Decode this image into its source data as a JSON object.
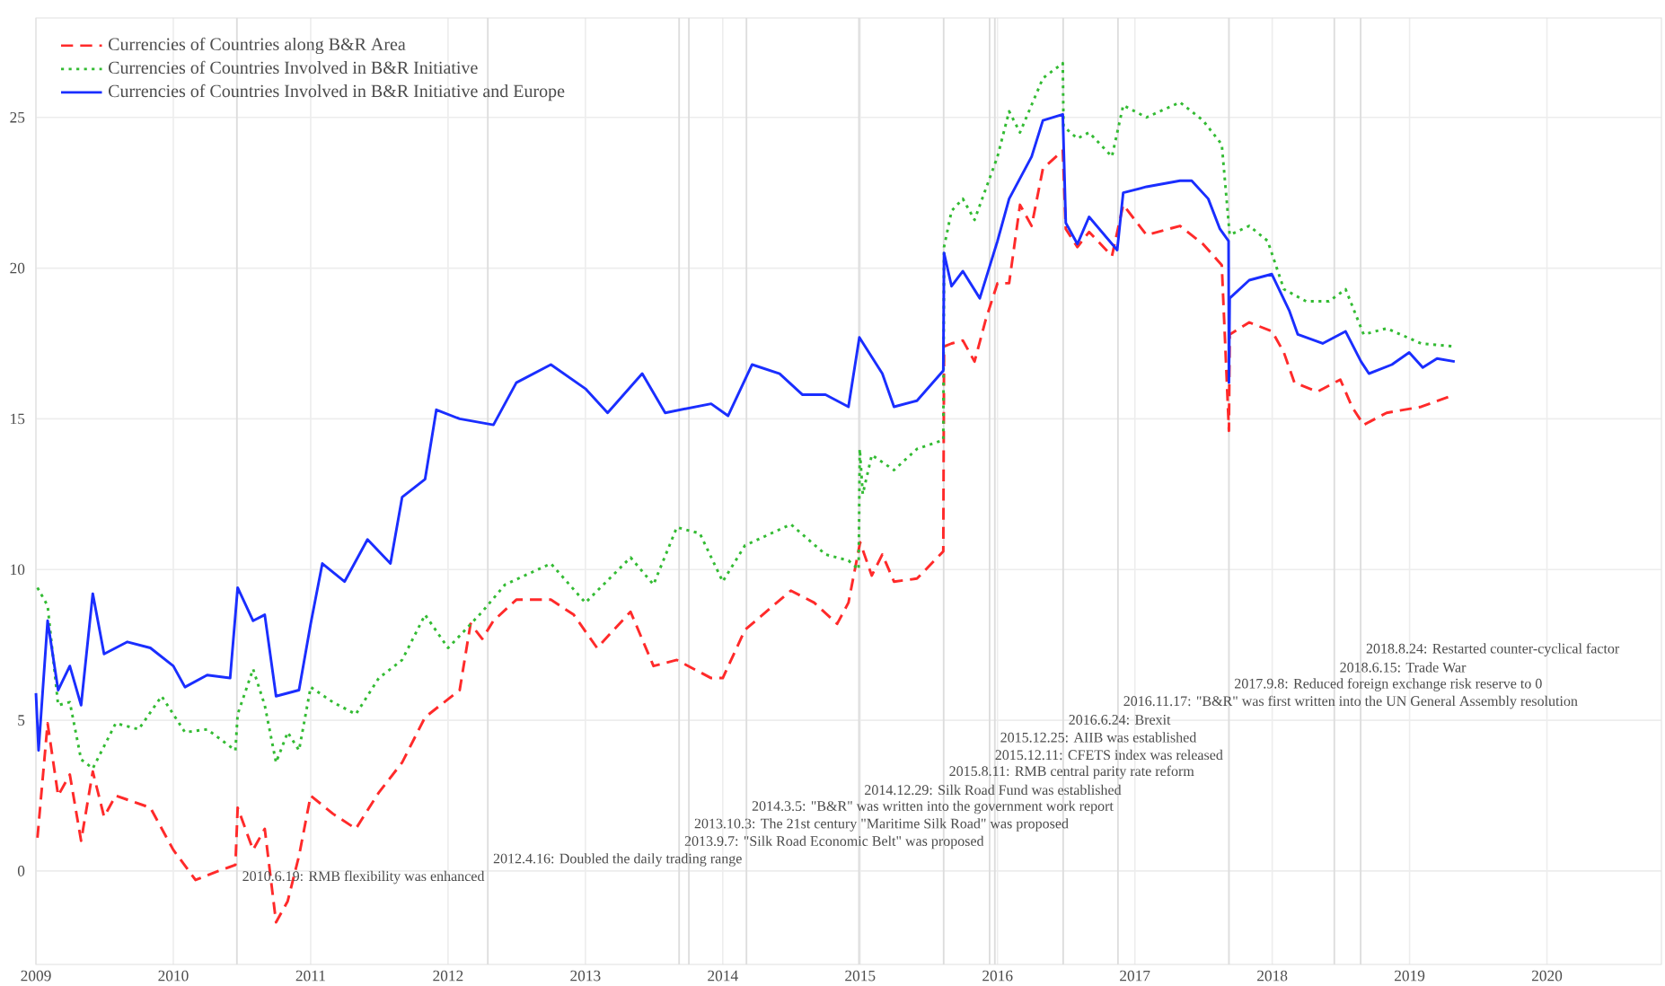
{
  "chart_data": {
    "type": "line",
    "xlim": [
      "2009-01-01",
      "2020-11-01"
    ],
    "xticks": [
      "2009",
      "2010",
      "2011",
      "2012",
      "2013",
      "2014",
      "2015",
      "2016",
      "2017",
      "2018",
      "2019",
      "2020"
    ],
    "ylim": [
      -3.1,
      28.3
    ],
    "yticks": [
      0,
      5,
      10,
      15,
      20,
      25
    ],
    "grid": true,
    "legend": "top left",
    "series": [
      {
        "name": "Currencies of Countries along B&R Area",
        "color": "#ff2a2a",
        "line_style": "dashed",
        "x": [
          "2009-01-05",
          "2009-02-01",
          "2009-03-01",
          "2009-04-01",
          "2009-05-01",
          "2009-06-01",
          "2009-07-01",
          "2009-08-01",
          "2009-11-01",
          "2010-01-01",
          "2010-03-01",
          "2010-05-01",
          "2010-06-15",
          "2010-06-21",
          "2010-08-01",
          "2010-09-01",
          "2010-10-01",
          "2010-11-01",
          "2010-12-01",
          "2011-01-01",
          "2011-03-01",
          "2011-05-01",
          "2011-07-01",
          "2011-09-01",
          "2011-11-01",
          "2012-01-01",
          "2012-02-01",
          "2012-03-01",
          "2012-04-01",
          "2012-05-01",
          "2012-07-01",
          "2012-10-01",
          "2012-12-01",
          "2013-02-01",
          "2013-05-01",
          "2013-07-01",
          "2013-09-01",
          "2013-12-01",
          "2014-01-01",
          "2014-03-01",
          "2014-07-01",
          "2014-09-01",
          "2014-11-01",
          "2014-12-01",
          "2015-01-01",
          "2015-02-01",
          "2015-03-01",
          "2015-04-01",
          "2015-06-01",
          "2015-08-10",
          "2015-08-12",
          "2015-09-01",
          "2015-10-01",
          "2015-11-01",
          "2015-12-01",
          "2016-01-01",
          "2016-02-01",
          "2016-03-01",
          "2016-04-01",
          "2016-05-01",
          "2016-06-23",
          "2016-07-01",
          "2016-08-01",
          "2016-09-01",
          "2016-11-01",
          "2016-12-01",
          "2017-02-01",
          "2017-05-01",
          "2017-07-01",
          "2017-08-20",
          "2017-09-08",
          "2017-09-10",
          "2017-11-01",
          "2018-01-01",
          "2018-02-01",
          "2018-03-01",
          "2018-05-01",
          "2018-07-01",
          "2018-08-01",
          "2018-09-01",
          "2018-11-01",
          "2019-02-01",
          "2019-05-01"
        ],
        "values": [
          1.1,
          4.9,
          2.5,
          3.2,
          1.0,
          3.3,
          1.8,
          2.5,
          2.1,
          0.7,
          -0.3,
          0.0,
          0.2,
          2.1,
          0.7,
          1.4,
          -1.7,
          -1.0,
          0.5,
          2.5,
          1.9,
          1.4,
          2.6,
          3.6,
          5.1,
          5.7,
          6.0,
          8.2,
          7.7,
          8.3,
          9.0,
          9.0,
          8.5,
          7.4,
          8.6,
          6.8,
          7.0,
          6.4,
          6.4,
          8.0,
          9.3,
          8.9,
          8.2,
          8.9,
          10.9,
          9.8,
          10.5,
          9.6,
          9.7,
          10.6,
          17.4,
          17.5,
          17.6,
          16.9,
          18.3,
          19.5,
          19.5,
          22.1,
          21.4,
          23.3,
          23.9,
          21.3,
          20.7,
          21.2,
          20.4,
          22.1,
          21.1,
          21.4,
          20.8,
          20.1,
          14.6,
          17.8,
          18.2,
          17.9,
          17.2,
          16.2,
          15.9,
          16.3,
          15.4,
          14.8,
          15.2,
          15.4,
          15.8
        ]
      },
      {
        "name": "Currencies of Countries Involved in B&R Initiative",
        "color": "#33bb33",
        "line_style": "dotted",
        "x": [
          "2009-01-05",
          "2009-02-01",
          "2009-03-01",
          "2009-04-01",
          "2009-05-01",
          "2009-06-01",
          "2009-08-01",
          "2009-10-01",
          "2009-12-01",
          "2010-02-01",
          "2010-04-01",
          "2010-06-15",
          "2010-06-21",
          "2010-08-01",
          "2010-09-01",
          "2010-10-01",
          "2010-11-01",
          "2010-12-01",
          "2011-01-01",
          "2011-03-01",
          "2011-05-01",
          "2011-07-01",
          "2011-09-01",
          "2011-11-01",
          "2012-01-01",
          "2012-02-01",
          "2012-04-01",
          "2012-06-01",
          "2012-10-01",
          "2013-01-01",
          "2013-05-01",
          "2013-07-01",
          "2013-09-01",
          "2013-11-01",
          "2014-01-01",
          "2014-03-01",
          "2014-07-01",
          "2014-10-01",
          "2014-12-01",
          "2014-12-28",
          "2014-12-31",
          "2015-01-08",
          "2015-02-01",
          "2015-04-01",
          "2015-06-01",
          "2015-08-10",
          "2015-08-12",
          "2015-09-01",
          "2015-10-01",
          "2015-11-01",
          "2016-01-01",
          "2016-02-01",
          "2016-03-01",
          "2016-05-01",
          "2016-06-23",
          "2016-06-25",
          "2016-08-01",
          "2016-09-01",
          "2016-11-01",
          "2016-12-01",
          "2017-02-01",
          "2017-05-01",
          "2017-07-01",
          "2017-08-20",
          "2017-09-10",
          "2017-11-01",
          "2017-12-20",
          "2018-02-01",
          "2018-04-01",
          "2018-06-01",
          "2018-07-15",
          "2018-09-01",
          "2018-11-01",
          "2019-02-01",
          "2019-05-01"
        ],
        "values": [
          9.4,
          8.8,
          5.5,
          5.6,
          3.7,
          3.4,
          4.9,
          4.7,
          5.8,
          4.6,
          4.7,
          4.0,
          5.2,
          6.7,
          5.5,
          3.6,
          4.6,
          4.0,
          6.1,
          5.6,
          5.2,
          6.4,
          7.0,
          8.5,
          7.4,
          7.8,
          8.6,
          9.5,
          10.2,
          8.9,
          10.4,
          9.5,
          11.4,
          11.2,
          9.6,
          10.8,
          11.5,
          10.5,
          10.3,
          10.0,
          14.0,
          12.5,
          13.8,
          13.3,
          14.0,
          14.3,
          20.7,
          21.9,
          22.3,
          21.6,
          23.7,
          25.2,
          24.5,
          26.3,
          26.8,
          24.7,
          24.3,
          24.5,
          23.7,
          25.4,
          25.0,
          25.5,
          24.9,
          24.1,
          21.1,
          21.4,
          20.9,
          19.3,
          18.9,
          18.9,
          19.3,
          17.8,
          18.0,
          17.5,
          17.4
        ]
      },
      {
        "name": "Currencies of Countries Involved in B&R Initiative and Europe",
        "color": "#1a2eff",
        "line_style": "solid",
        "x": [
          "2009-01-01",
          "2009-01-08",
          "2009-02-01",
          "2009-03-01",
          "2009-04-01",
          "2009-05-01",
          "2009-06-01",
          "2009-07-01",
          "2009-09-01",
          "2009-11-01",
          "2010-01-01",
          "2010-02-01",
          "2010-04-01",
          "2010-06-01",
          "2010-06-21",
          "2010-08-01",
          "2010-09-01",
          "2010-10-01",
          "2010-12-01",
          "2011-01-01",
          "2011-02-01",
          "2011-04-01",
          "2011-06-01",
          "2011-08-01",
          "2011-09-01",
          "2011-11-01",
          "2011-12-01",
          "2012-02-01",
          "2012-05-01",
          "2012-07-01",
          "2012-10-01",
          "2013-01-01",
          "2013-03-01",
          "2013-06-01",
          "2013-08-01",
          "2013-12-01",
          "2014-01-15",
          "2014-03-20",
          "2014-06-01",
          "2014-08-01",
          "2014-10-01",
          "2014-12-01",
          "2014-12-30",
          "2015-03-01",
          "2015-04-01",
          "2015-06-01",
          "2015-08-10",
          "2015-08-12",
          "2015-09-01",
          "2015-10-01",
          "2015-11-15",
          "2016-01-01",
          "2016-02-01",
          "2016-04-01",
          "2016-05-01",
          "2016-06-23",
          "2016-07-01",
          "2016-08-01",
          "2016-09-01",
          "2016-11-15",
          "2016-12-01",
          "2017-02-01",
          "2017-05-01",
          "2017-06-01",
          "2017-07-15",
          "2017-08-15",
          "2017-09-07",
          "2017-09-08",
          "2017-09-10",
          "2017-11-01",
          "2017-12-31",
          "2018-02-15",
          "2018-03-10",
          "2018-05-15",
          "2018-07-15",
          "2018-08-25",
          "2018-09-15",
          "2018-11-15",
          "2018-12-31",
          "2019-02-05",
          "2019-03-15",
          "2019-05-01"
        ],
        "values": [
          5.9,
          4.0,
          8.3,
          6.0,
          6.8,
          5.5,
          9.2,
          7.2,
          7.6,
          7.4,
          6.8,
          6.1,
          6.5,
          6.4,
          9.4,
          8.3,
          8.5,
          5.8,
          6.0,
          8.2,
          10.2,
          9.6,
          11.0,
          10.2,
          12.4,
          13.0,
          15.3,
          15.0,
          14.8,
          16.2,
          16.8,
          16.0,
          15.2,
          16.5,
          15.2,
          15.5,
          15.1,
          16.8,
          16.5,
          15.8,
          15.8,
          15.4,
          17.7,
          16.5,
          15.4,
          15.6,
          16.6,
          20.5,
          19.4,
          19.9,
          19.0,
          20.9,
          22.3,
          23.7,
          24.9,
          25.1,
          21.5,
          20.8,
          21.7,
          20.6,
          22.5,
          22.7,
          22.9,
          22.9,
          22.3,
          21.3,
          20.9,
          16.2,
          19.0,
          19.6,
          19.8,
          18.6,
          17.8,
          17.5,
          17.9,
          16.9,
          16.5,
          16.8,
          17.2,
          16.7,
          17.0,
          16.9
        ]
      }
    ],
    "ref_lines": [
      {
        "axis": "x",
        "value": "2010-06-19",
        "label": "2010.6.19: RMB flexibility was enhanced",
        "color": "#dddddd"
      },
      {
        "axis": "x",
        "value": "2012-04-16",
        "label": "2012.4.16: Doubled the daily trading range",
        "color": "#dddddd"
      },
      {
        "axis": "x",
        "value": "2013-09-07",
        "label": "2013.9.7: \"Silk Road Economic Belt\" was proposed",
        "color": "#dddddd"
      },
      {
        "axis": "x",
        "value": "2013-10-03",
        "label": "2013.10.3: The 21st century \"Maritime Silk Road\" was proposed",
        "color": "#dddddd"
      },
      {
        "axis": "x",
        "value": "2014-03-05",
        "label": "2014.3.5: \"B&R\" was written into the government work report",
        "color": "#dddddd"
      },
      {
        "axis": "x",
        "value": "2014-12-29",
        "label": "2014.12.29: Silk Road Fund was established",
        "color": "#dddddd"
      },
      {
        "axis": "x",
        "value": "2015-08-11",
        "label": "2015.8.11: RMB central parity rate reform",
        "color": "#dddddd"
      },
      {
        "axis": "x",
        "value": "2015-12-11",
        "label": "2015.12.11: CFETS index was released",
        "color": "#dddddd"
      },
      {
        "axis": "x",
        "value": "2015-12-25",
        "label": "2015.12.25: AIIB was established",
        "color": "#dddddd"
      },
      {
        "axis": "x",
        "value": "2016-06-24",
        "label": "2016.6.24: Brexit",
        "color": "#dddddd"
      },
      {
        "axis": "x",
        "value": "2016-11-17",
        "label": "2016.11.17: \"B&R\" was first written into the UN General Assembly resolution",
        "color": "#dddddd"
      },
      {
        "axis": "x",
        "value": "2017-09-08",
        "label": "2017.9.8: Reduced foreign exchange risk reserve to 0",
        "color": "#dddddd"
      },
      {
        "axis": "x",
        "value": "2018-06-15",
        "label": "2018.6.15: Trade War",
        "color": "#dddddd"
      },
      {
        "axis": "x",
        "value": "2018-08-24",
        "label": "2018.8.24: Restarted counter-cyclical factor",
        "color": "#dddddd"
      }
    ]
  }
}
